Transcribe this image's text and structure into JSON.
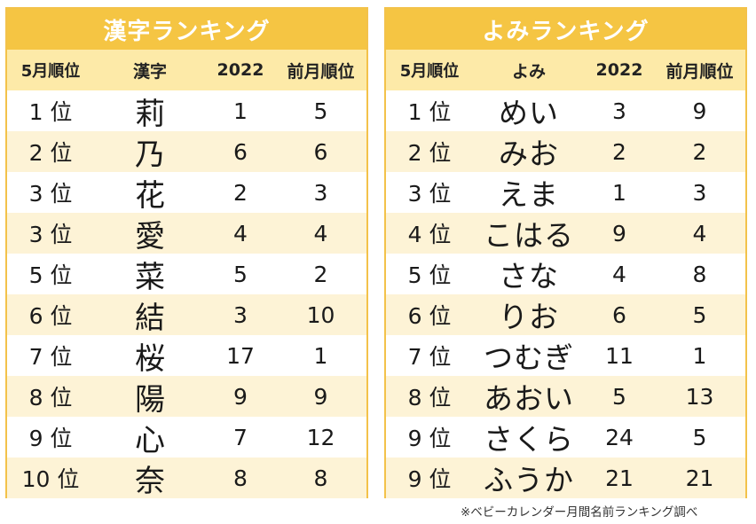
{
  "kanji_ranking": {
    "title": "漢字ランキング",
    "headers": [
      "5月順位",
      "漢字",
      "2022",
      "前月順位"
    ],
    "rows": [
      {
        "rank": "1 位",
        "name": "莉",
        "y2022": "1",
        "prev": "5"
      },
      {
        "rank": "2 位",
        "name": "乃",
        "y2022": "6",
        "prev": "6"
      },
      {
        "rank": "3 位",
        "name": "花",
        "y2022": "2",
        "prev": "3"
      },
      {
        "rank": "3 位",
        "name": "愛",
        "y2022": "4",
        "prev": "4"
      },
      {
        "rank": "5 位",
        "name": "菜",
        "y2022": "5",
        "prev": "2"
      },
      {
        "rank": "6 位",
        "name": "結",
        "y2022": "3",
        "prev": "10"
      },
      {
        "rank": "7 位",
        "name": "桜",
        "y2022": "17",
        "prev": "1"
      },
      {
        "rank": "8 位",
        "name": "陽",
        "y2022": "9",
        "prev": "9"
      },
      {
        "rank": "9 位",
        "name": "心",
        "y2022": "7",
        "prev": "12"
      },
      {
        "rank": "10 位",
        "name": "奈",
        "y2022": "8",
        "prev": "8"
      }
    ]
  },
  "yomi_ranking": {
    "title": "よみランキング",
    "headers": [
      "5月順位",
      "よみ",
      "2022",
      "前月順位"
    ],
    "rows": [
      {
        "rank": "1 位",
        "name": "めい",
        "y2022": "3",
        "prev": "9"
      },
      {
        "rank": "2 位",
        "name": "みお",
        "y2022": "2",
        "prev": "2"
      },
      {
        "rank": "3 位",
        "name": "えま",
        "y2022": "1",
        "prev": "3"
      },
      {
        "rank": "4 位",
        "name": "こはる",
        "y2022": "9",
        "prev": "4"
      },
      {
        "rank": "5 位",
        "name": "さな",
        "y2022": "4",
        "prev": "8"
      },
      {
        "rank": "6 位",
        "name": "りお",
        "y2022": "6",
        "prev": "5"
      },
      {
        "rank": "7 位",
        "name": "つむぎ",
        "y2022": "11",
        "prev": "1"
      },
      {
        "rank": "8 位",
        "name": "あおい",
        "y2022": "5",
        "prev": "13"
      },
      {
        "rank": "9 位",
        "name": "さくら",
        "y2022": "24",
        "prev": "5"
      },
      {
        "rank": "9 位",
        "name": "ふうか",
        "y2022": "21",
        "prev": "21"
      }
    ]
  },
  "footnote": "※ベビーカレンダー月間名前ランキング調べ",
  "colors": {
    "title_bg": "#f5c543",
    "header_bg": "#fdeaa8",
    "alt_row_bg": "#fdf3d6",
    "border": "#f3c24a"
  }
}
